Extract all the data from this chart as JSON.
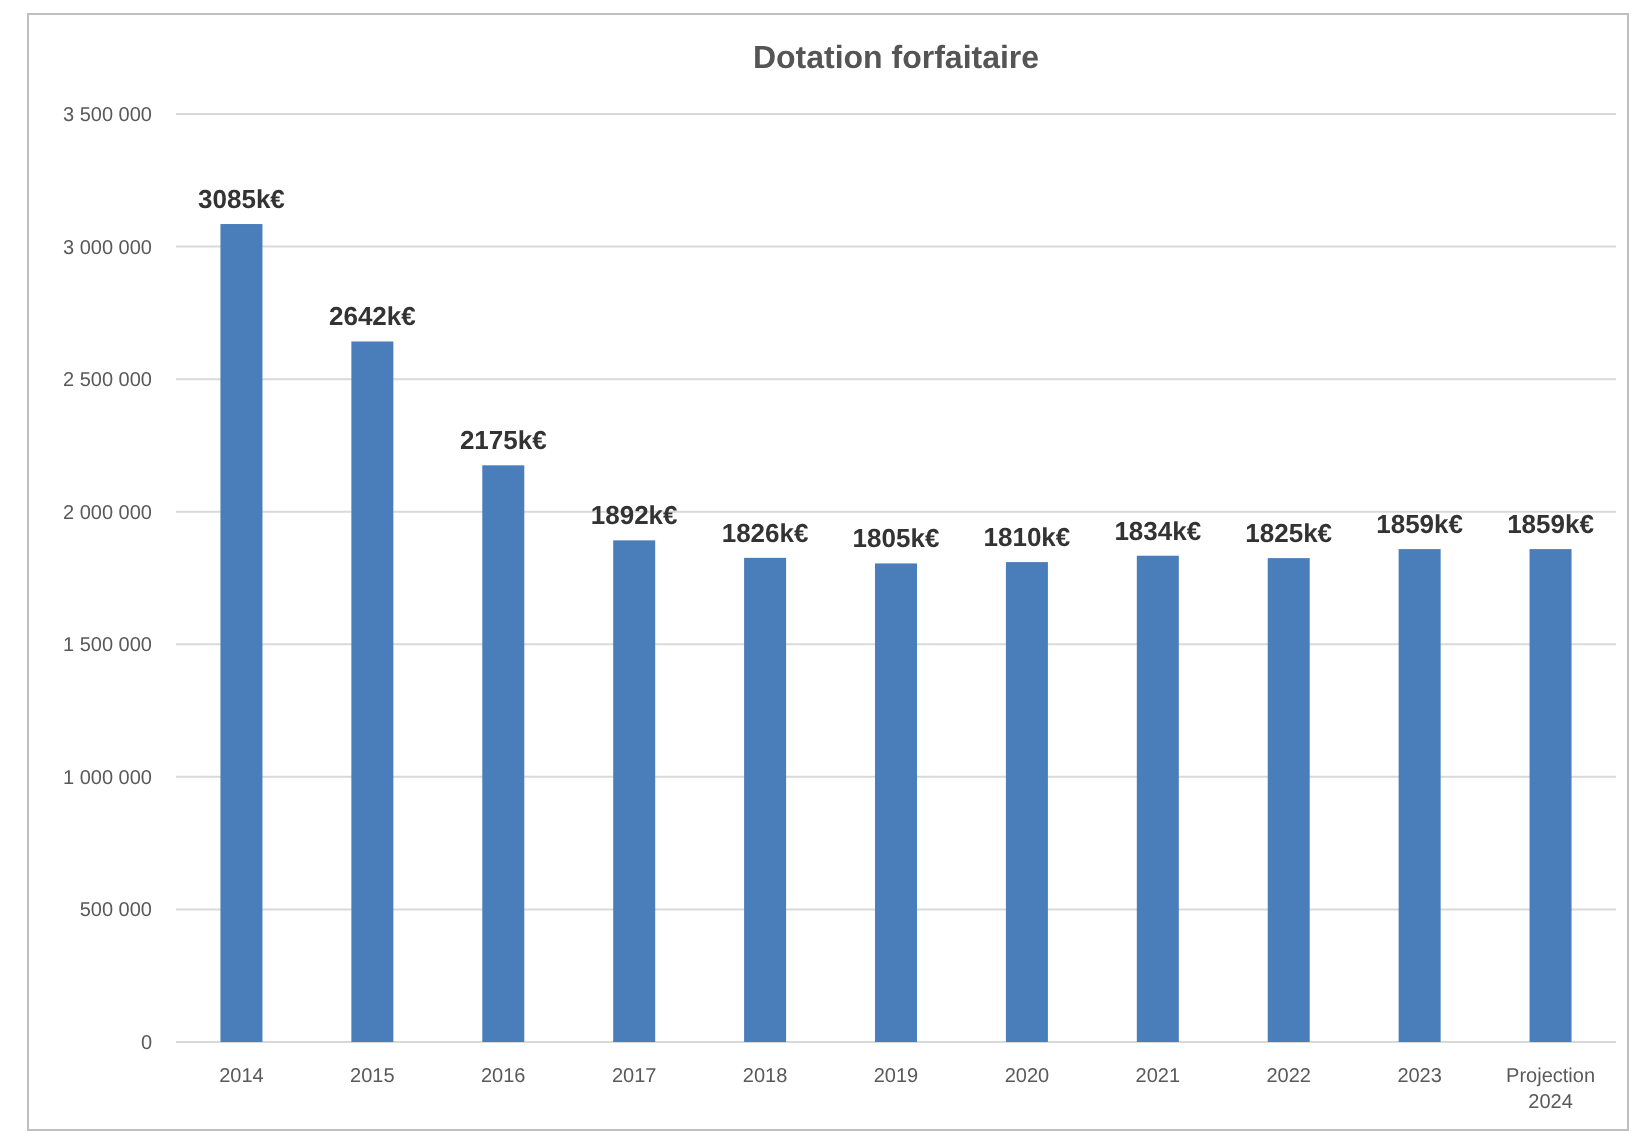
{
  "chart_data": {
    "type": "bar",
    "title": "Dotation forfaitaire",
    "categories": [
      "2014",
      "2015",
      "2016",
      "2017",
      "2018",
      "2019",
      "2020",
      "2021",
      "2022",
      "2023",
      "Projection 2024"
    ],
    "values": [
      3085000,
      2642000,
      2175000,
      1892000,
      1826000,
      1805000,
      1810000,
      1834000,
      1825000,
      1859000,
      1859000
    ],
    "value_labels": [
      "3085k€",
      "2642k€",
      "2175k€",
      "1892k€",
      "1826k€",
      "1805k€",
      "1810k€",
      "1834k€",
      "1825k€",
      "1859k€",
      "1859k€"
    ],
    "color": "#4a7ebb",
    "ylim": [
      0,
      3500000
    ],
    "yticks": [
      0,
      {
        "value": 500000,
        "label": "500 000"
      },
      {
        "value": 1000000,
        "label": "1 000 000"
      },
      {
        "value": 1500000,
        "label": "1 500 000"
      },
      {
        "value": 2000000,
        "label": "2 000 000"
      },
      {
        "value": 2500000,
        "label": "2 500 000"
      },
      {
        "value": 3000000,
        "label": "3 000 000"
      },
      {
        "value": 3500000,
        "label": "3 500 000"
      }
    ],
    "grid": "y"
  }
}
